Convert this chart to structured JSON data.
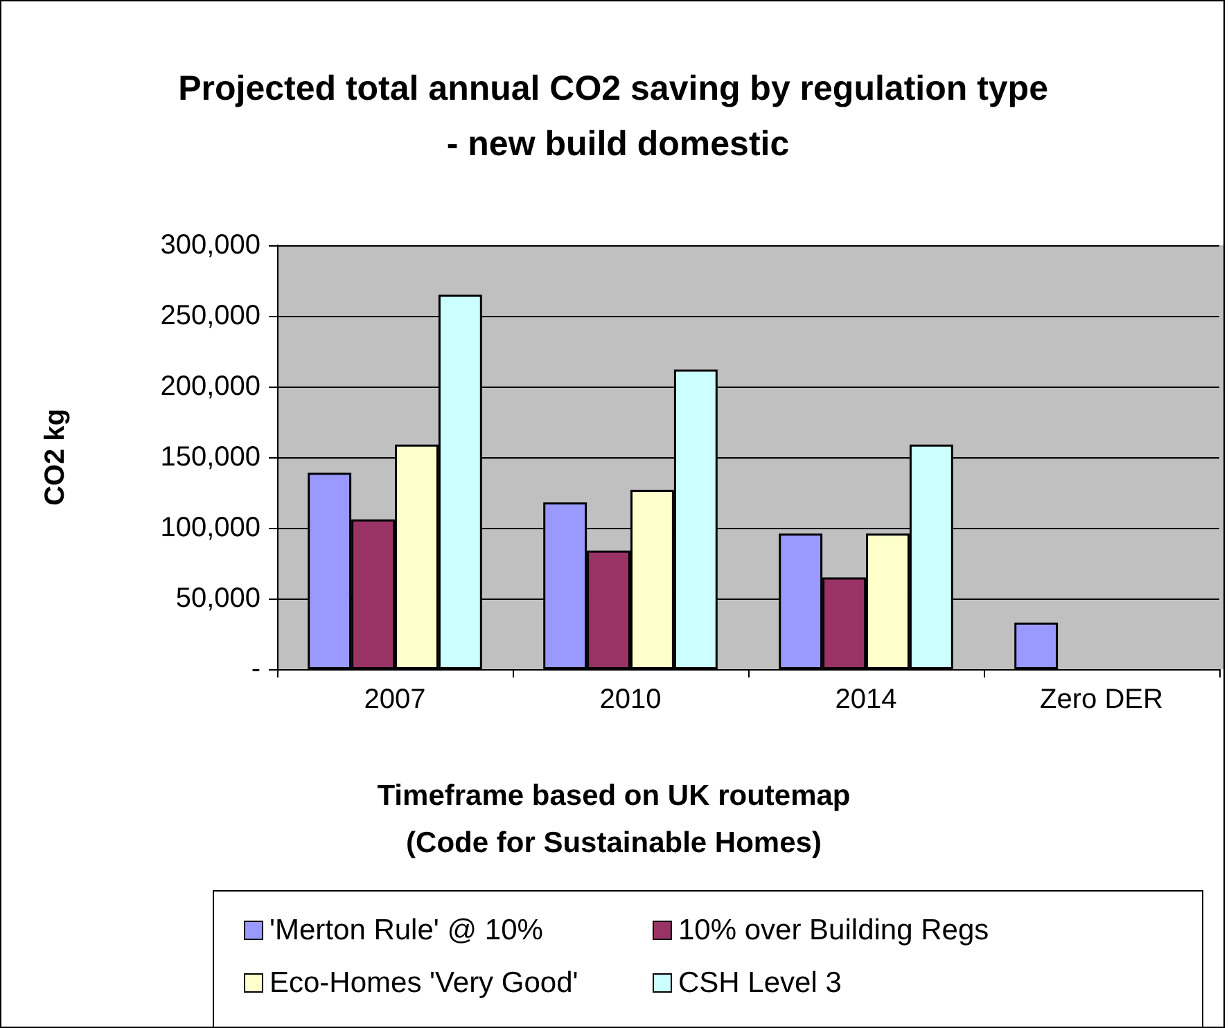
{
  "chart_data": {
    "type": "bar",
    "title": "Projected total annual CO2 saving by regulation type - new build domestic",
    "xlabel": "Timeframe based on UK routemap\n(Code for Sustainable Homes)",
    "ylabel": "CO2 kg",
    "categories": [
      "2007",
      "2010",
      "2014",
      "Zero DER"
    ],
    "series": [
      {
        "name": "'Merton Rule' @ 10%",
        "color": "#9999ff",
        "values": [
          139000,
          118000,
          96000,
          33000
        ]
      },
      {
        "name": "10% over Building Regs",
        "color": "#993366",
        "values": [
          106000,
          84000,
          65000,
          null
        ]
      },
      {
        "name": "Eco-Homes 'Very Good'",
        "color": "#ffffcc",
        "values": [
          159000,
          127000,
          96000,
          null
        ]
      },
      {
        "name": "CSH Level 3",
        "color": "#ccffff",
        "values": [
          265000,
          212000,
          159000,
          null
        ]
      }
    ],
    "ylim": [
      0,
      300000
    ],
    "yticks": [
      {
        "value": 0,
        "label": "-"
      },
      {
        "value": 50000,
        "label": "50,000"
      },
      {
        "value": 100000,
        "label": "100,000"
      },
      {
        "value": 150000,
        "label": "150,000"
      },
      {
        "value": 200000,
        "label": "200,000"
      },
      {
        "value": 250000,
        "label": "250,000"
      },
      {
        "value": 300000,
        "label": "300,000"
      }
    ],
    "grid": "y",
    "legend": "bottom"
  }
}
